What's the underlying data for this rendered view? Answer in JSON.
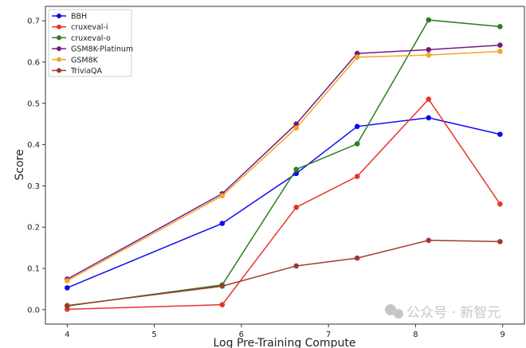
{
  "chart_data": {
    "type": "line",
    "xlabel": "Log Pre-Training Compute",
    "ylabel": "Score",
    "xlim": [
      3.75,
      9.25
    ],
    "ylim": [
      -0.035,
      0.735
    ],
    "xticks": [
      4,
      5,
      6,
      7,
      8,
      9
    ],
    "yticks": [
      0.0,
      0.1,
      0.2,
      0.3,
      0.4,
      0.5,
      0.6,
      0.7
    ],
    "x": [
      4.0,
      5.78,
      6.63,
      7.33,
      8.15,
      8.97
    ],
    "legend_position": "top-left",
    "series": [
      {
        "name": "BBH",
        "color": "#0b0bf0",
        "values": [
          0.053,
          0.209,
          0.33,
          0.444,
          0.465,
          0.425
        ]
      },
      {
        "name": "cruxeval-i",
        "color": "#e8332a",
        "values": [
          0.001,
          0.012,
          0.248,
          0.323,
          0.51,
          0.256
        ]
      },
      {
        "name": "cruxeval-o",
        "color": "#2e7d1e",
        "values": [
          0.009,
          0.06,
          0.34,
          0.402,
          0.702,
          0.686
        ]
      },
      {
        "name": "GSM8K-Platinum",
        "color": "#731a80",
        "values": [
          0.074,
          0.281,
          0.45,
          0.621,
          0.63,
          0.641
        ]
      },
      {
        "name": "GSM8K",
        "color": "#f5a623",
        "values": [
          0.07,
          0.276,
          0.44,
          0.612,
          0.617,
          0.626
        ]
      },
      {
        "name": "TriviaQA",
        "color": "#9b3a30",
        "values": [
          0.01,
          0.057,
          0.106,
          0.125,
          0.168,
          0.165
        ]
      }
    ]
  },
  "watermark": "公众号 · 新智元"
}
